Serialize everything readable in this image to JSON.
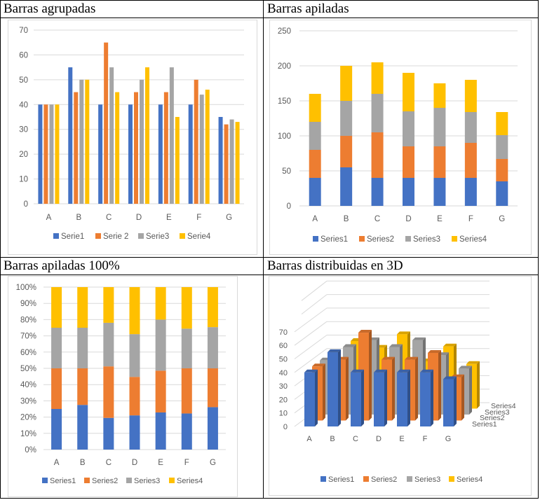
{
  "colors": {
    "series1": "#4472C4",
    "series2": "#ED7D31",
    "series3": "#A5A5A5",
    "series4": "#FFC000",
    "grid": "#d9d9d9",
    "text": "#595959"
  },
  "chart_data": [
    {
      "title": "Barras agrupadas",
      "type": "bar",
      "mode": "grouped",
      "categories": [
        "A",
        "B",
        "C",
        "D",
        "E",
        "F",
        "G"
      ],
      "series": [
        {
          "name": "Serie1",
          "values": [
            40,
            55,
            40,
            40,
            40,
            40,
            35
          ]
        },
        {
          "name": "Serie 2",
          "values": [
            40,
            45,
            65,
            45,
            45,
            50,
            32
          ]
        },
        {
          "name": "Serie3",
          "values": [
            40,
            50,
            55,
            50,
            55,
            44,
            34
          ]
        },
        {
          "name": "Serie4",
          "values": [
            40,
            50,
            45,
            55,
            35,
            46,
            33
          ]
        }
      ],
      "ylim": [
        0,
        70
      ],
      "yticks": [
        "0",
        "10",
        "20",
        "30",
        "40",
        "50",
        "60",
        "70"
      ],
      "grid": true,
      "legend": "bottom"
    },
    {
      "title": "Barras apiladas",
      "type": "bar",
      "mode": "stacked",
      "categories": [
        "A",
        "B",
        "C",
        "D",
        "E",
        "F",
        "G"
      ],
      "series": [
        {
          "name": "Series1",
          "values": [
            40,
            55,
            40,
            40,
            40,
            40,
            35
          ]
        },
        {
          "name": "Series2",
          "values": [
            40,
            45,
            65,
            45,
            45,
            50,
            32
          ]
        },
        {
          "name": "Series3",
          "values": [
            40,
            50,
            55,
            50,
            55,
            44,
            34
          ]
        },
        {
          "name": "Series4",
          "values": [
            40,
            50,
            45,
            55,
            35,
            46,
            33
          ]
        }
      ],
      "ylim": [
        0,
        250
      ],
      "yticks": [
        "0",
        "50",
        "100",
        "150",
        "200",
        "250"
      ],
      "grid": true,
      "legend": "bottom"
    },
    {
      "title": "Barras apiladas 100%",
      "type": "bar",
      "mode": "percent",
      "categories": [
        "A",
        "B",
        "C",
        "D",
        "E",
        "F",
        "G"
      ],
      "series": [
        {
          "name": "Series1",
          "values": [
            40,
            55,
            40,
            40,
            40,
            40,
            35
          ]
        },
        {
          "name": "Series2",
          "values": [
            40,
            45,
            65,
            45,
            45,
            50,
            32
          ]
        },
        {
          "name": "Series3",
          "values": [
            40,
            50,
            55,
            50,
            55,
            44,
            34
          ]
        },
        {
          "name": "Series4",
          "values": [
            40,
            50,
            45,
            55,
            35,
            46,
            33
          ]
        }
      ],
      "ylim": [
        0,
        100
      ],
      "yticks": [
        "0%",
        "10%",
        "20%",
        "30%",
        "40%",
        "50%",
        "60%",
        "70%",
        "80%",
        "90%",
        "100%"
      ],
      "grid": true,
      "legend": "bottom"
    },
    {
      "title": "Barras distribuidas en 3D",
      "type": "bar",
      "mode": "3d",
      "categories": [
        "A",
        "B",
        "C",
        "D",
        "E",
        "F",
        "G"
      ],
      "series": [
        {
          "name": "Series1",
          "values": [
            40,
            55,
            40,
            40,
            40,
            40,
            35
          ]
        },
        {
          "name": "Series2",
          "values": [
            40,
            45,
            65,
            45,
            45,
            50,
            32
          ]
        },
        {
          "name": "Series3",
          "values": [
            40,
            50,
            55,
            50,
            55,
            44,
            34
          ]
        },
        {
          "name": "Series4",
          "values": [
            40,
            50,
            45,
            55,
            35,
            46,
            33
          ]
        }
      ],
      "ylim": [
        0,
        70
      ],
      "yticks": [
        "0",
        "10",
        "20",
        "30",
        "40",
        "50",
        "60",
        "70"
      ],
      "depth_labels": [
        "Series1",
        "Series2",
        "Series3",
        "Series4"
      ],
      "grid": true,
      "legend": "bottom"
    }
  ]
}
